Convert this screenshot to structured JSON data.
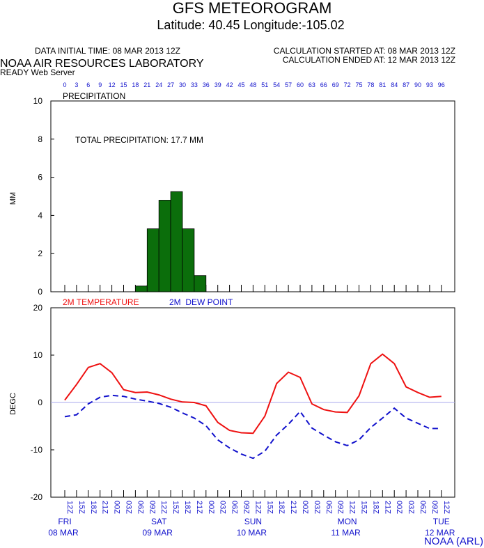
{
  "header": {
    "title": "GFS METEOROGRAM",
    "location": "Latitude: 40.45 Longitude:-105.02",
    "data_initial_time": "DATA INITIAL TIME: 08 MAR 2013 12Z",
    "calc_started": "CALCULATION STARTED AT: 08 MAR 2013 12Z",
    "calc_ended": "CALCULATION ENDED AT: 12 MAR 2013 12Z",
    "lab": "NOAA AIR RESOURCES LABORATORY",
    "server": "READY Web Server",
    "credit": "NOAA (ARL)"
  },
  "colors": {
    "temperature": "#ee1111",
    "dew_point": "#1111cc",
    "precip_fill": "#0b6e0b",
    "axis_blue": "#1111cc",
    "zero_line": "#aaaaee"
  },
  "chart_data": [
    {
      "type": "bar",
      "title": "PRECIPITATION",
      "annotation": "TOTAL PRECIPITATION:  17.7 MM",
      "ylabel": "MM",
      "ylim": [
        0,
        10
      ],
      "yticks": [
        "0",
        "2",
        "4",
        "6",
        "8",
        "10"
      ],
      "forecast_hours": [
        "0",
        "3",
        "6",
        "9",
        "12",
        "15",
        "18",
        "21",
        "24",
        "27",
        "30",
        "33",
        "36",
        "39",
        "42",
        "45",
        "48",
        "51",
        "54",
        "57",
        "60",
        "63",
        "66",
        "69",
        "72",
        "75",
        "78",
        "81",
        "84",
        "87",
        "90",
        "93",
        "96"
      ],
      "bars": [
        {
          "start_hour": 18,
          "end_hour": 21,
          "value": 0.3
        },
        {
          "start_hour": 21,
          "end_hour": 24,
          "value": 3.3
        },
        {
          "start_hour": 24,
          "end_hour": 27,
          "value": 4.8
        },
        {
          "start_hour": 27,
          "end_hour": 30,
          "value": 5.25
        },
        {
          "start_hour": 30,
          "end_hour": 33,
          "value": 3.3
        },
        {
          "start_hour": 33,
          "end_hour": 36,
          "value": 0.85
        }
      ]
    },
    {
      "type": "line",
      "ylabel": "DEGC",
      "ylim": [
        -20,
        20
      ],
      "yticks": [
        "-20",
        "-10",
        "0",
        "10",
        "20"
      ],
      "forecast_hours": [
        0,
        3,
        6,
        9,
        12,
        15,
        18,
        21,
        24,
        27,
        30,
        33,
        36,
        39,
        42,
        45,
        48,
        51,
        54,
        57,
        60,
        63,
        66,
        69,
        72,
        75,
        78,
        81,
        84,
        87,
        90,
        93,
        96
      ],
      "series": [
        {
          "name": "2M TEMPERATURE",
          "values": [
            0.5,
            3.8,
            7.4,
            8.2,
            6.3,
            2.7,
            2.1,
            2.2,
            1.6,
            0.7,
            0.1,
            0.0,
            -0.7,
            -4.2,
            -5.9,
            -6.4,
            -6.5,
            -2.9,
            4.0,
            6.4,
            5.3,
            -0.3,
            -1.5,
            -2.0,
            -2.1,
            1.4,
            8.2,
            10.2,
            8.2,
            3.3,
            2.1,
            1.1,
            1.3
          ]
        },
        {
          "name": "2M  DEW POINT",
          "values": [
            -3.0,
            -2.6,
            -0.3,
            1.1,
            1.5,
            1.3,
            0.7,
            0.3,
            -0.2,
            -1.0,
            -2.2,
            -3.3,
            -4.9,
            -7.9,
            -9.6,
            -10.9,
            -11.8,
            -10.3,
            -6.9,
            -4.6,
            -1.9,
            -5.4,
            -6.9,
            -8.3,
            -9.1,
            -7.9,
            -5.3,
            -3.3,
            -1.2,
            -3.3,
            -4.4,
            -5.5,
            -5.5
          ]
        }
      ],
      "time_labels": [
        "12Z",
        "15Z",
        "18Z",
        "21Z",
        "00Z",
        "03Z",
        "06Z",
        "09Z",
        "12Z",
        "15Z",
        "18Z",
        "21Z",
        "00Z",
        "03Z",
        "06Z",
        "09Z",
        "12Z",
        "15Z",
        "18Z",
        "21Z",
        "00Z",
        "03Z",
        "06Z",
        "09Z",
        "12Z",
        "15Z",
        "18Z",
        "21Z",
        "00Z",
        "03Z",
        "06Z",
        "09Z",
        "12Z"
      ],
      "days": [
        {
          "hour": 0,
          "day": "FRI",
          "date": "08 MAR"
        },
        {
          "hour": 24,
          "day": "SAT",
          "date": "09 MAR"
        },
        {
          "hour": 48,
          "day": "SUN",
          "date": "10 MAR"
        },
        {
          "hour": 72,
          "day": "MON",
          "date": "11 MAR"
        },
        {
          "hour": 96,
          "day": "TUE",
          "date": "12 MAR"
        }
      ]
    }
  ]
}
